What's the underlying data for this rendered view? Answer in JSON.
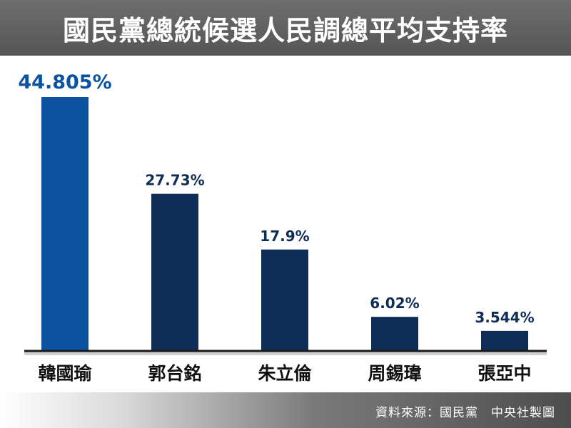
{
  "title": "國民黨總統候選人民調總平均支持率",
  "source": "資料來源：國民黨　中央社製圖",
  "colors": {
    "highlight": "#0b52a0",
    "bar": "#0f2d57",
    "highlight_label": "#0b52a0",
    "label": "#0f2d57",
    "axis": "#1a1a1a"
  },
  "chart_data": {
    "type": "bar",
    "title": "國民黨總統候選人民調總平均支持率",
    "categories": [
      "韓國瑜",
      "郭台銘",
      "朱立倫",
      "周錫瑋",
      "張亞中"
    ],
    "values": [
      44.805,
      27.73,
      17.9,
      6.02,
      3.544
    ],
    "value_labels": [
      "44.805%",
      "27.73%",
      "17.9%",
      "6.02%",
      "3.544%"
    ],
    "highlight_index": 0,
    "xlabel": "",
    "ylabel": "",
    "ylim": [
      0,
      44.805
    ],
    "grid": false,
    "legend": "none"
  }
}
